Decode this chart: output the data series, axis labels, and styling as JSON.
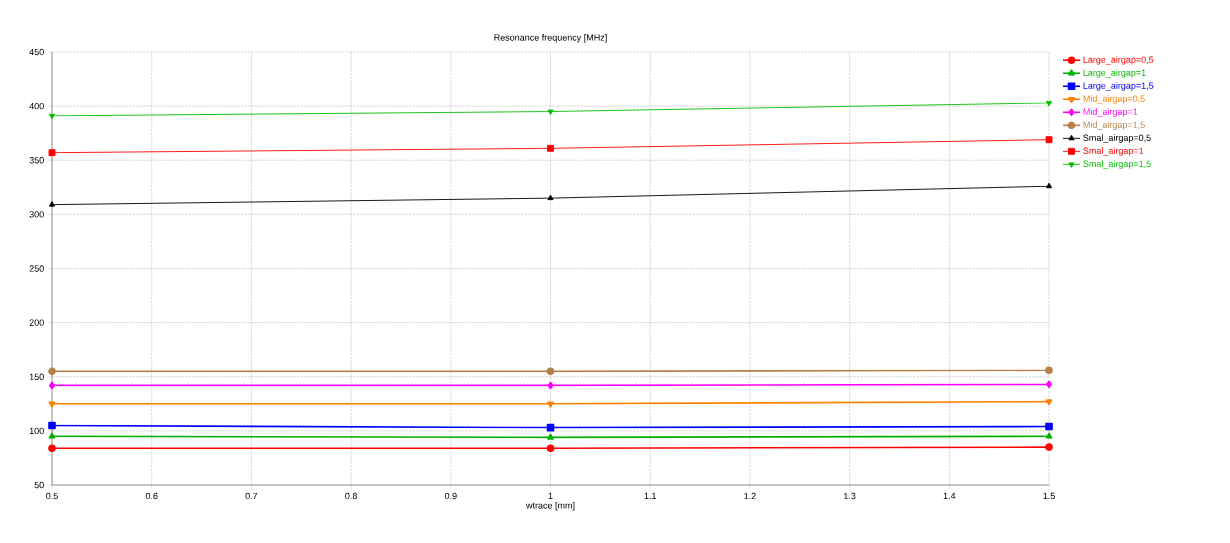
{
  "chart_data": {
    "type": "line",
    "title": "Resonance frequency [MHz]",
    "xlabel": "wtrace [mm]",
    "x": [
      0.5,
      1,
      1.5
    ],
    "xlim": [
      0.5,
      1.5
    ],
    "xticks": [
      0.5,
      0.6,
      0.7,
      0.8,
      0.9,
      1,
      1.1,
      1.2,
      1.3,
      1.4,
      1.5
    ],
    "ylim": [
      50,
      450
    ],
    "yticks": [
      50,
      100,
      150,
      200,
      250,
      300,
      350,
      400,
      450
    ],
    "grid": true,
    "legend": "right",
    "series": [
      {
        "name": "Large_airgap=0,5",
        "color": "#ff0000",
        "marker": "circle",
        "values": [
          84,
          84,
          85
        ]
      },
      {
        "name": "Large_airgap=1",
        "color": "#00b000",
        "marker": "triangle",
        "values": [
          95,
          94,
          95
        ]
      },
      {
        "name": "Large_airgap=1,5",
        "color": "#0000ff",
        "marker": "square",
        "values": [
          105,
          103,
          104
        ]
      },
      {
        "name": "Mid_airgap=0,5",
        "color": "#ff8000",
        "marker": "triangle-down",
        "values": [
          125,
          125,
          127
        ]
      },
      {
        "name": "Mid_airgap=1",
        "color": "#ff00ff",
        "marker": "diamond",
        "values": [
          142,
          142,
          143
        ]
      },
      {
        "name": "Mid_airgap=1,5",
        "color": "#b8804a",
        "marker": "circle",
        "values": [
          155,
          155,
          156
        ]
      },
      {
        "name": "Smal_airgap=0,5",
        "color": "#000000",
        "marker": "triangle",
        "values": [
          309,
          315,
          326
        ]
      },
      {
        "name": "Smal_airgap=1",
        "color": "#ff0000",
        "marker": "square",
        "values": [
          357,
          361,
          369
        ]
      },
      {
        "name": "Smal_airgap=1,5",
        "color": "#00c000",
        "marker": "triangle-down",
        "values": [
          391,
          395,
          403
        ]
      }
    ]
  }
}
